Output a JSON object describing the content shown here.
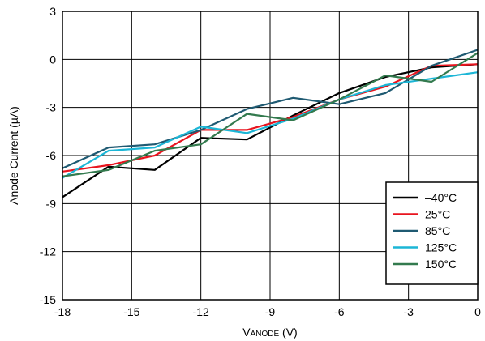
{
  "chart_data": {
    "type": "line",
    "title": "",
    "xlabel": "V",
    "xlabel_sub": "ANODE",
    "xlabel_unit": " (V)",
    "ylabel": "Anode Current (µA)",
    "xlim": [
      -18,
      0
    ],
    "ylim": [
      -15,
      3
    ],
    "x_ticks": [
      -18,
      -15,
      -12,
      -9,
      -6,
      -3,
      0
    ],
    "y_ticks": [
      -15,
      -12,
      -9,
      -6,
      -3,
      0,
      3
    ],
    "grid": true,
    "legend_position": "bottom-right",
    "series": [
      {
        "name": "–40°C",
        "color": "#000000",
        "points": [
          [
            -18,
            -8.6
          ],
          [
            -16,
            -6.7
          ],
          [
            -14,
            -6.9
          ],
          [
            -12,
            -4.9
          ],
          [
            -10,
            -5.0
          ],
          [
            -8,
            -3.5
          ],
          [
            -6,
            -2.1
          ],
          [
            -4,
            -1.1
          ],
          [
            -2,
            -0.5
          ],
          [
            0,
            -0.3
          ]
        ]
      },
      {
        "name": "25°C",
        "color": "#e8141e",
        "points": [
          [
            -18,
            -7.0
          ],
          [
            -16,
            -6.6
          ],
          [
            -14,
            -6.0
          ],
          [
            -12,
            -4.4
          ],
          [
            -10,
            -4.4
          ],
          [
            -8,
            -3.6
          ],
          [
            -6,
            -2.5
          ],
          [
            -4,
            -1.7
          ],
          [
            -2,
            -0.4
          ],
          [
            0,
            -0.3
          ]
        ]
      },
      {
        "name": "85°C",
        "color": "#1f5a72",
        "points": [
          [
            -18,
            -6.8
          ],
          [
            -16,
            -5.5
          ],
          [
            -14,
            -5.3
          ],
          [
            -12,
            -4.4
          ],
          [
            -10,
            -3.1
          ],
          [
            -8,
            -2.4
          ],
          [
            -6,
            -2.8
          ],
          [
            -4,
            -2.1
          ],
          [
            -2,
            -0.4
          ],
          [
            0,
            0.6
          ]
        ]
      },
      {
        "name": "125°C",
        "color": "#1cb6d6",
        "points": [
          [
            -18,
            -7.4
          ],
          [
            -16,
            -5.7
          ],
          [
            -14,
            -5.5
          ],
          [
            -12,
            -4.2
          ],
          [
            -10,
            -4.6
          ],
          [
            -8,
            -3.7
          ],
          [
            -6,
            -2.5
          ],
          [
            -4,
            -1.6
          ],
          [
            -2,
            -1.2
          ],
          [
            0,
            -0.8
          ]
        ]
      },
      {
        "name": "150°C",
        "color": "#337a4e",
        "points": [
          [
            -18,
            -7.3
          ],
          [
            -16,
            -6.9
          ],
          [
            -14,
            -5.7
          ],
          [
            -12,
            -5.3
          ],
          [
            -10,
            -3.4
          ],
          [
            -8,
            -3.8
          ],
          [
            -6,
            -2.5
          ],
          [
            -4,
            -1.0
          ],
          [
            -2,
            -1.4
          ],
          [
            0,
            0.4
          ]
        ]
      }
    ]
  }
}
